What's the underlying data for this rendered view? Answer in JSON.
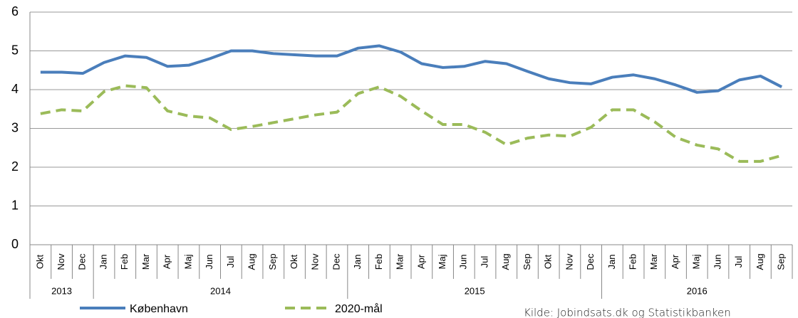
{
  "chart_data": {
    "type": "line",
    "categories": [
      "Okt",
      "Nov",
      "Dec",
      "Jan",
      "Feb",
      "Mar",
      "Apr",
      "Maj",
      "Jun",
      "Jul",
      "Aug",
      "Sep",
      "Okt",
      "Nov",
      "Dec",
      "Jan",
      "Feb",
      "Mar",
      "Apr",
      "Maj",
      "Jun",
      "Jul",
      "Aug",
      "Sep",
      "Okt",
      "Nov",
      "Dec",
      "Jan",
      "Feb",
      "Mar",
      "Apr",
      "Maj",
      "Jun",
      "Jul",
      "Aug",
      "Sep"
    ],
    "year_groups": [
      {
        "label": "2013",
        "months": 3
      },
      {
        "label": "2014",
        "months": 12
      },
      {
        "label": "2015",
        "months": 12
      },
      {
        "label": "2016",
        "months": 9
      }
    ],
    "series": [
      {
        "name": "København",
        "color": "#4a7ebb",
        "dashed": false,
        "values": [
          4.45,
          4.45,
          4.42,
          4.7,
          4.87,
          4.83,
          4.6,
          4.63,
          4.8,
          5.0,
          5.0,
          4.93,
          4.9,
          4.87,
          4.87,
          5.07,
          5.13,
          4.97,
          4.67,
          4.57,
          4.6,
          4.73,
          4.67,
          4.47,
          4.28,
          4.18,
          4.15,
          4.32,
          4.38,
          4.28,
          4.12,
          3.93,
          3.97,
          4.25,
          4.35,
          4.07
        ]
      },
      {
        "name": "2020-mål",
        "color": "#9bbb59",
        "dashed": true,
        "values": [
          3.38,
          3.48,
          3.45,
          3.95,
          4.1,
          4.05,
          3.45,
          3.32,
          3.27,
          2.97,
          3.05,
          3.15,
          3.25,
          3.35,
          3.42,
          3.9,
          4.07,
          3.83,
          3.45,
          3.1,
          3.1,
          2.9,
          2.58,
          2.75,
          2.83,
          2.8,
          3.03,
          3.48,
          3.48,
          3.17,
          2.77,
          2.57,
          2.47,
          2.15,
          2.15,
          2.3
        ]
      }
    ],
    "ylim": [
      0,
      6
    ],
    "yticks": [
      0,
      1,
      2,
      3,
      4,
      5,
      6
    ],
    "grid": true,
    "source": "Kilde: Jobindsats.dk og Statistikbanken"
  }
}
